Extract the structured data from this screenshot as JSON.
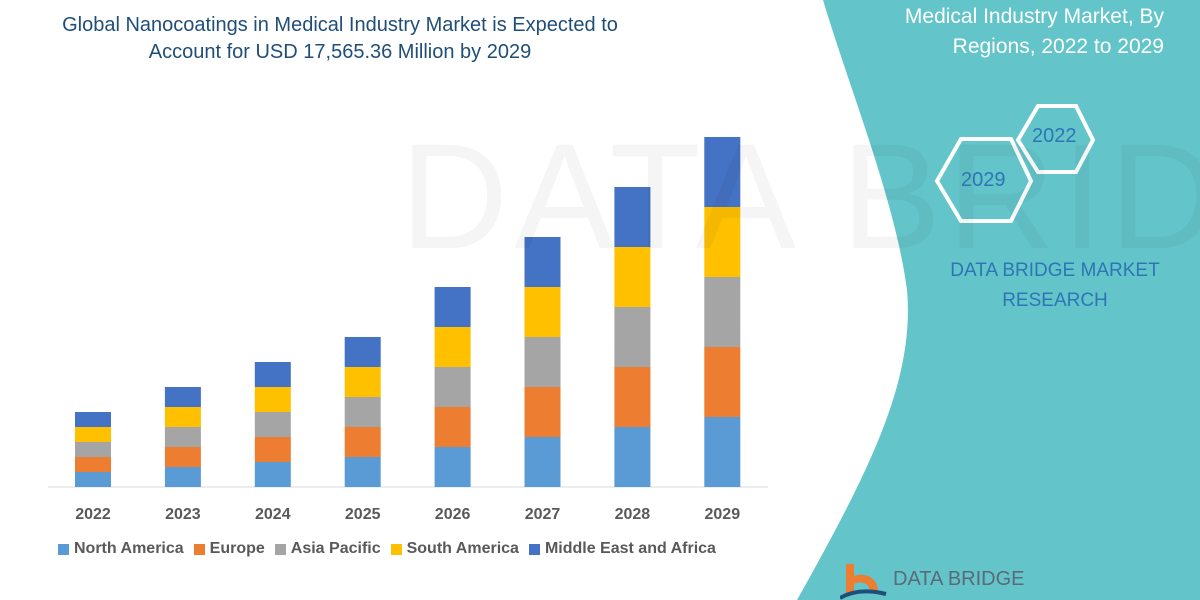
{
  "title_line1": "Global Nanocoatings in Medical Industry Market is Expected to",
  "title_line2": "Account for USD 17,565.36 Million by 2029",
  "side_panel": {
    "title_line1": "Medical Industry Market, By",
    "title_line2": "Regions, 2022 to 2029",
    "hex_front": "2029",
    "hex_back": "2022",
    "brand_line1": "DATA BRIDGE MARKET",
    "brand_line2": "RESEARCH",
    "logo_text": "DATA BRIDGE",
    "background_color": "#63C5C9"
  },
  "chart_data": {
    "type": "bar",
    "stacked": true,
    "categories": [
      "2022",
      "2023",
      "2024",
      "2025",
      "2026",
      "2027",
      "2028",
      "2029"
    ],
    "series": [
      {
        "name": "North America",
        "color": "#5B9BD5",
        "values": [
          15,
          20,
          25,
          30,
          40,
          50,
          60,
          70
        ]
      },
      {
        "name": "Europe",
        "color": "#ED7D31",
        "values": [
          15,
          20,
          25,
          30,
          40,
          50,
          60,
          70
        ]
      },
      {
        "name": "Asia Pacific",
        "color": "#A5A5A5",
        "values": [
          15,
          20,
          25,
          30,
          40,
          50,
          60,
          70
        ]
      },
      {
        "name": "South America",
        "color": "#FFC000",
        "values": [
          15,
          20,
          25,
          30,
          40,
          50,
          60,
          70
        ]
      },
      {
        "name": "Middle East and Africa",
        "color": "#4472C4",
        "values": [
          15,
          20,
          25,
          30,
          40,
          50,
          60,
          70
        ]
      }
    ],
    "y_axis_shown": false,
    "grid": false,
    "legend_position": "bottom"
  }
}
